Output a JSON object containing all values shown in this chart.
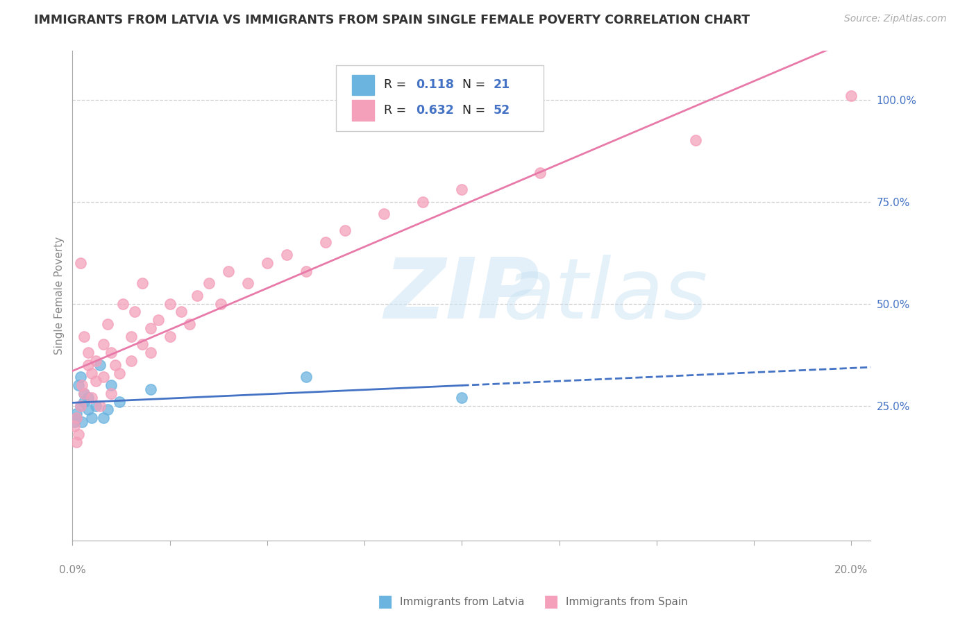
{
  "title": "IMMIGRANTS FROM LATVIA VS IMMIGRANTS FROM SPAIN SINGLE FEMALE POVERTY CORRELATION CHART",
  "source": "Source: ZipAtlas.com",
  "ylabel": "Single Female Poverty",
  "color_latvia": "#6cb4e0",
  "color_spain": "#f4a0ba",
  "color_line_latvia": "#4472c4",
  "color_line_spain": "#e87aaa",
  "color_text_blue": "#4472c4",
  "xlim": [
    0.0,
    0.205
  ],
  "ylim": [
    -0.08,
    1.12
  ],
  "right_ytick_vals": [
    0.25,
    0.5,
    0.75,
    1.0
  ],
  "right_ytick_labels": [
    "25.0%",
    "50.0%",
    "75.0%",
    "100.0%"
  ],
  "grid_color": "#d0d0d0",
  "background_color": "#ffffff",
  "R_latvia": 0.118,
  "N_latvia": 21,
  "R_spain": 0.632,
  "N_spain": 52,
  "lat_x": [
    0.0005,
    0.001,
    0.001,
    0.0015,
    0.002,
    0.002,
    0.0025,
    0.003,
    0.003,
    0.004,
    0.004,
    0.005,
    0.006,
    0.007,
    0.008,
    0.009,
    0.01,
    0.012,
    0.02,
    0.06,
    0.1
  ],
  "lat_y": [
    0.21,
    0.23,
    0.22,
    0.3,
    0.25,
    0.32,
    0.21,
    0.26,
    0.28,
    0.24,
    0.27,
    0.22,
    0.25,
    0.35,
    0.22,
    0.24,
    0.3,
    0.26,
    0.29,
    0.32,
    0.27
  ],
  "sp_x": [
    0.0005,
    0.001,
    0.001,
    0.0015,
    0.002,
    0.002,
    0.0025,
    0.003,
    0.003,
    0.004,
    0.004,
    0.005,
    0.005,
    0.006,
    0.006,
    0.007,
    0.008,
    0.008,
    0.009,
    0.01,
    0.01,
    0.011,
    0.012,
    0.013,
    0.015,
    0.015,
    0.016,
    0.018,
    0.018,
    0.02,
    0.02,
    0.022,
    0.025,
    0.025,
    0.028,
    0.03,
    0.032,
    0.035,
    0.038,
    0.04,
    0.045,
    0.05,
    0.055,
    0.06,
    0.065,
    0.07,
    0.08,
    0.09,
    0.1,
    0.12,
    0.16,
    0.2
  ],
  "sp_y": [
    0.2,
    0.22,
    0.16,
    0.18,
    0.25,
    0.6,
    0.3,
    0.28,
    0.42,
    0.35,
    0.38,
    0.27,
    0.33,
    0.31,
    0.36,
    0.25,
    0.4,
    0.32,
    0.45,
    0.28,
    0.38,
    0.35,
    0.33,
    0.5,
    0.42,
    0.36,
    0.48,
    0.4,
    0.55,
    0.38,
    0.44,
    0.46,
    0.42,
    0.5,
    0.48,
    0.45,
    0.52,
    0.55,
    0.5,
    0.58,
    0.55,
    0.6,
    0.62,
    0.58,
    0.65,
    0.68,
    0.72,
    0.75,
    0.78,
    0.82,
    0.9,
    1.01
  ]
}
